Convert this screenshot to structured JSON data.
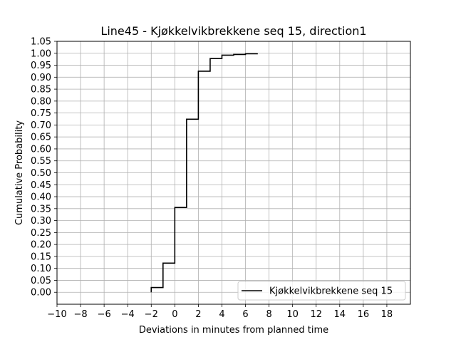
{
  "chart_data": {
    "type": "line",
    "step": "post",
    "title": "Line45 - Kjøkkelvikbrekkene seq 15, direction1",
    "xlabel": "Deviations in minutes from planned time",
    "ylabel": "Cumulative Probability",
    "xlim": [
      -10,
      20
    ],
    "ylim": [
      -0.05,
      1.05
    ],
    "xticks": [
      -10,
      -8,
      -6,
      -4,
      -2,
      0,
      2,
      4,
      6,
      8,
      10,
      12,
      14,
      16,
      18
    ],
    "yticks": [
      0.0,
      0.05,
      0.1,
      0.15,
      0.2,
      0.25,
      0.3,
      0.35,
      0.4,
      0.45,
      0.5,
      0.55,
      0.6,
      0.65,
      0.7,
      0.75,
      0.8,
      0.85,
      0.9,
      0.95,
      1.0,
      1.05
    ],
    "grid": true,
    "legend_position": "lower-right",
    "series": [
      {
        "name": "Kjøkkelvikbrekkene seq 15",
        "color": "#000000",
        "x": [
          -2,
          -1,
          0,
          1,
          2,
          3,
          4,
          5,
          6,
          7
        ],
        "y": [
          0.02,
          0.122,
          0.355,
          0.724,
          0.925,
          0.978,
          0.992,
          0.995,
          0.998,
          1.0
        ]
      }
    ]
  }
}
